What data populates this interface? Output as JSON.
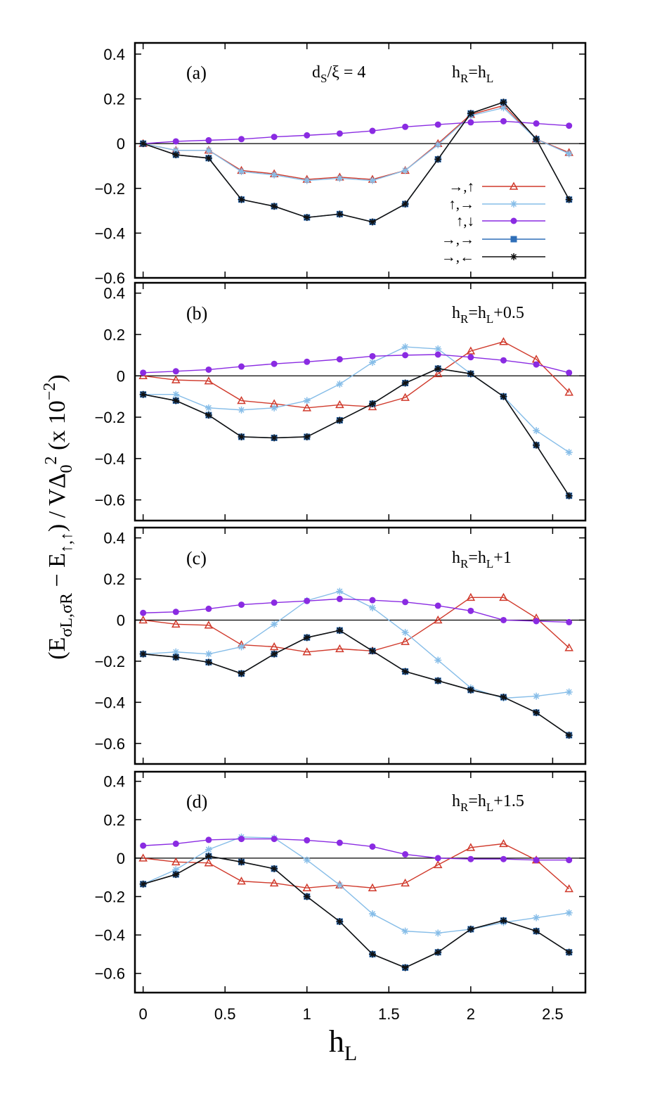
{
  "figure": {
    "ylabel": "(Eσ_L,σ_R − E↑,↑) / VΔ0^2   (x 10^-2)",
    "xlabel": "h_L",
    "annotation": "d_S/ξ = 4"
  },
  "legend": {
    "entries": [
      {
        "label": "→,↑",
        "series": "s1"
      },
      {
        "label": "↑,→",
        "series": "s2"
      },
      {
        "label": "↑,↓",
        "series": "s3"
      },
      {
        "label": "→,→",
        "series": "s4"
      },
      {
        "label": "→,←",
        "series": "s5"
      }
    ]
  },
  "series_styles": {
    "s1": {
      "color": "#d03a2c",
      "marker": "triangle"
    },
    "s2": {
      "color": "#86bde8",
      "marker": "asterisk"
    },
    "s3": {
      "color": "#8a2be2",
      "marker": "circle"
    },
    "s4": {
      "color": "#2f6fb8",
      "marker": "square"
    },
    "s5": {
      "color": "#111111",
      "marker": "asterisk"
    }
  },
  "chart_data": [
    {
      "type": "line",
      "panel": "(a)",
      "condition": "h_R=h_L",
      "x": [
        0,
        0.2,
        0.4,
        0.6,
        0.8,
        1.0,
        1.2,
        1.4,
        1.6,
        1.8,
        2.0,
        2.2,
        2.4,
        2.6
      ],
      "xlim": [
        -0.05,
        2.7
      ],
      "ylim": [
        -0.6,
        0.45
      ],
      "yticks": [
        0.4,
        0.2,
        0,
        -0.2,
        -0.4,
        -0.6
      ],
      "yticklabels": [
        "0.4",
        "0.2",
        "0",
        "−0.2",
        "−0.4",
        "−0.6"
      ],
      "series": [
        {
          "id": "s1",
          "name": "→,↑",
          "values": [
            0,
            -0.03,
            -0.03,
            -0.12,
            -0.135,
            -0.16,
            -0.15,
            -0.16,
            -0.12,
            0,
            0.13,
            0.17,
            0.02,
            -0.04
          ]
        },
        {
          "id": "s2",
          "name": "↑,→",
          "values": [
            0,
            -0.03,
            -0.03,
            -0.125,
            -0.14,
            -0.165,
            -0.155,
            -0.165,
            -0.12,
            -0.005,
            0.125,
            0.16,
            0.02,
            -0.045
          ]
        },
        {
          "id": "s3",
          "name": "↑,↓",
          "values": [
            0,
            0.01,
            0.015,
            0.02,
            0.03,
            0.037,
            0.045,
            0.057,
            0.075,
            0.085,
            0.095,
            0.1,
            0.09,
            0.08
          ]
        },
        {
          "id": "s4",
          "name": "→,→",
          "values": [
            0,
            -0.05,
            -0.065,
            -0.25,
            -0.28,
            -0.33,
            -0.315,
            -0.35,
            -0.27,
            -0.07,
            0.135,
            0.185,
            0.02,
            -0.25
          ]
        },
        {
          "id": "s5",
          "name": "→,←",
          "values": [
            0,
            -0.05,
            -0.065,
            -0.25,
            -0.28,
            -0.33,
            -0.315,
            -0.35,
            -0.27,
            -0.07,
            0.135,
            0.185,
            0.02,
            -0.25
          ]
        }
      ]
    },
    {
      "type": "line",
      "panel": "(b)",
      "condition": "h_R=h_L+0.5",
      "x": [
        0,
        0.2,
        0.4,
        0.6,
        0.8,
        1.0,
        1.2,
        1.4,
        1.6,
        1.8,
        2.0,
        2.2,
        2.4,
        2.6
      ],
      "xlim": [
        -0.05,
        2.7
      ],
      "ylim": [
        -0.7,
        0.45
      ],
      "yticks": [
        0.4,
        0.2,
        0,
        -0.2,
        -0.4,
        -0.6
      ],
      "yticklabels": [
        "0.4",
        "0.2",
        "0",
        "−0.2",
        "−0.4",
        "−0.6"
      ],
      "series": [
        {
          "id": "s1",
          "name": "→,↑",
          "values": [
            0,
            -0.02,
            -0.025,
            -0.12,
            -0.135,
            -0.155,
            -0.14,
            -0.15,
            -0.105,
            0.01,
            0.12,
            0.165,
            0.08,
            -0.08
          ]
        },
        {
          "id": "s2",
          "name": "↑,→",
          "values": [
            -0.09,
            -0.09,
            -0.155,
            -0.165,
            -0.155,
            -0.12,
            -0.04,
            0.065,
            0.14,
            0.13,
            0.01,
            -0.1,
            -0.265,
            -0.37
          ]
        },
        {
          "id": "s3",
          "name": "↑,↓",
          "values": [
            0.015,
            0.022,
            0.03,
            0.045,
            0.058,
            0.068,
            0.08,
            0.095,
            0.1,
            0.103,
            0.09,
            0.075,
            0.055,
            0.015
          ]
        },
        {
          "id": "s4",
          "name": "→,→",
          "values": [
            -0.09,
            -0.12,
            -0.19,
            -0.295,
            -0.3,
            -0.295,
            -0.215,
            -0.135,
            -0.035,
            0.035,
            0.01,
            -0.1,
            -0.335,
            -0.58
          ]
        },
        {
          "id": "s5",
          "name": "→,←",
          "values": [
            -0.09,
            -0.12,
            -0.19,
            -0.295,
            -0.3,
            -0.295,
            -0.215,
            -0.135,
            -0.035,
            0.035,
            0.01,
            -0.1,
            -0.335,
            -0.58
          ]
        }
      ]
    },
    {
      "type": "line",
      "panel": "(c)",
      "condition": "h_R=h_L+1",
      "x": [
        0,
        0.2,
        0.4,
        0.6,
        0.8,
        1.0,
        1.2,
        1.4,
        1.6,
        1.8,
        2.0,
        2.2,
        2.4,
        2.6
      ],
      "xlim": [
        -0.05,
        2.7
      ],
      "ylim": [
        -0.7,
        0.45
      ],
      "yticks": [
        0.4,
        0.2,
        0,
        -0.2,
        -0.4,
        -0.6
      ],
      "yticklabels": [
        "0.4",
        "0.2",
        "0",
        "−0.2",
        "−0.4",
        "−0.6"
      ],
      "series": [
        {
          "id": "s1",
          "name": "→,↑",
          "values": [
            0,
            -0.02,
            -0.025,
            -0.12,
            -0.13,
            -0.155,
            -0.14,
            -0.15,
            -0.105,
            0,
            0.11,
            0.11,
            0.01,
            -0.135
          ]
        },
        {
          "id": "s2",
          "name": "↑,→",
          "values": [
            -0.165,
            -0.155,
            -0.165,
            -0.13,
            -0.02,
            0.095,
            0.14,
            0.06,
            -0.06,
            -0.195,
            -0.33,
            -0.38,
            -0.37,
            -0.35
          ]
        },
        {
          "id": "s3",
          "name": "↑,↓",
          "values": [
            0.035,
            0.04,
            0.055,
            0.075,
            0.085,
            0.093,
            0.103,
            0.097,
            0.088,
            0.07,
            0.045,
            0,
            -0.005,
            -0.01
          ]
        },
        {
          "id": "s4",
          "name": "→,→",
          "values": [
            -0.165,
            -0.18,
            -0.205,
            -0.26,
            -0.165,
            -0.085,
            -0.05,
            -0.15,
            -0.25,
            -0.295,
            -0.34,
            -0.375,
            -0.45,
            -0.56
          ]
        },
        {
          "id": "s5",
          "name": "→,←",
          "values": [
            -0.165,
            -0.18,
            -0.205,
            -0.26,
            -0.165,
            -0.085,
            -0.05,
            -0.15,
            -0.25,
            -0.295,
            -0.34,
            -0.375,
            -0.45,
            -0.56
          ]
        }
      ]
    },
    {
      "type": "line",
      "panel": "(d)",
      "condition": "h_R=h_L+1.5",
      "x": [
        0,
        0.2,
        0.4,
        0.6,
        0.8,
        1.0,
        1.2,
        1.4,
        1.6,
        1.8,
        2.0,
        2.2,
        2.4,
        2.6
      ],
      "xlim": [
        -0.05,
        2.7
      ],
      "ylim": [
        -0.7,
        0.45
      ],
      "xticks": [
        0,
        0.5,
        1,
        1.5,
        2,
        2.5
      ],
      "xticklabels": [
        "0",
        "0.5",
        "1",
        "1.5",
        "2",
        "2.5"
      ],
      "yticks": [
        0.4,
        0.2,
        0,
        -0.2,
        -0.4,
        -0.6
      ],
      "yticklabels": [
        "0.4",
        "0.2",
        "0",
        "−0.2",
        "−0.4",
        "−0.6"
      ],
      "series": [
        {
          "id": "s1",
          "name": "→,↑",
          "values": [
            0,
            -0.02,
            -0.025,
            -0.12,
            -0.13,
            -0.155,
            -0.14,
            -0.155,
            -0.13,
            -0.035,
            0.055,
            0.075,
            -0.01,
            -0.16
          ]
        },
        {
          "id": "s2",
          "name": "↑,→",
          "values": [
            -0.135,
            -0.06,
            0.045,
            0.11,
            0.105,
            -0.01,
            -0.14,
            -0.29,
            -0.38,
            -0.39,
            -0.37,
            -0.335,
            -0.31,
            -0.285
          ]
        },
        {
          "id": "s3",
          "name": "↑,↓",
          "values": [
            0.065,
            0.075,
            0.095,
            0.1,
            0.1,
            0.093,
            0.08,
            0.06,
            0.02,
            0,
            -0.005,
            -0.005,
            -0.01,
            -0.01
          ]
        },
        {
          "id": "s4",
          "name": "→,→",
          "values": [
            -0.135,
            -0.085,
            0.01,
            -0.02,
            -0.055,
            -0.2,
            -0.33,
            -0.5,
            -0.57,
            -0.49,
            -0.37,
            -0.325,
            -0.38,
            -0.49
          ]
        },
        {
          "id": "s5",
          "name": "→,←",
          "values": [
            -0.135,
            -0.085,
            0.01,
            -0.02,
            -0.055,
            -0.2,
            -0.33,
            -0.5,
            -0.57,
            -0.49,
            -0.37,
            -0.325,
            -0.38,
            -0.49
          ]
        }
      ]
    }
  ]
}
